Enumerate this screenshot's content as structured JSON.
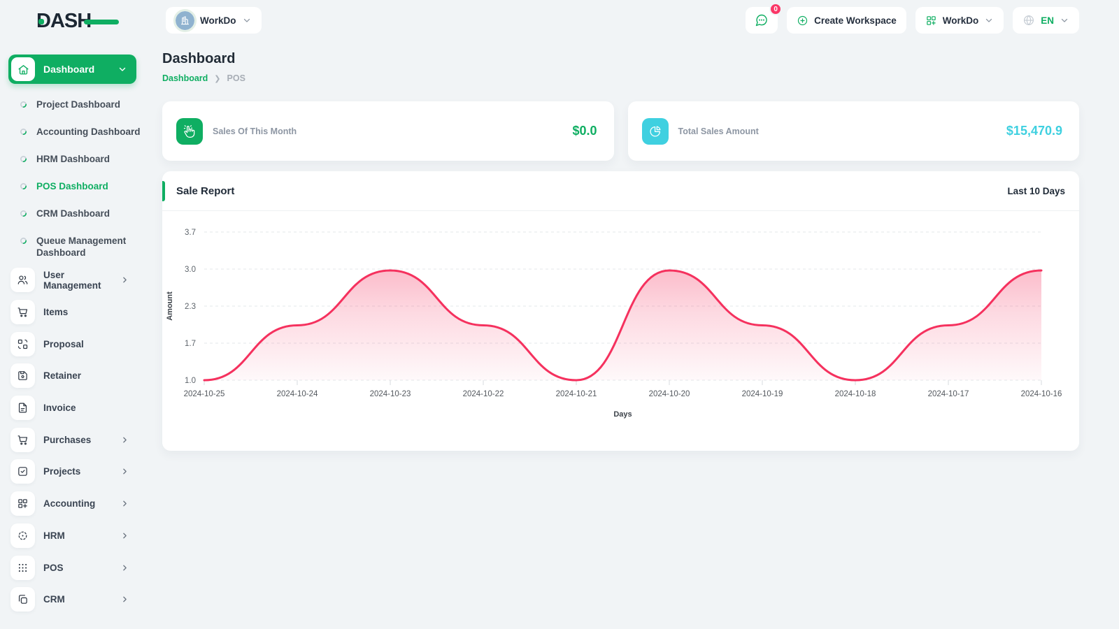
{
  "brand": {
    "name": "DASH"
  },
  "topbar": {
    "workspace_selector": {
      "name": "WorkDo",
      "icon": "building-icon"
    },
    "messages": {
      "icon": "chat-icon",
      "badge": "0"
    },
    "create_workspace": {
      "label": "Create Workspace",
      "icon": "plus-circle-icon"
    },
    "app_switcher": {
      "label": "WorkDo",
      "icon": "grid-plus-icon"
    },
    "language": {
      "label": "EN",
      "icon": "globe-icon"
    }
  },
  "sidebar": {
    "active_item": {
      "label": "Dashboard",
      "icon": "home-icon"
    },
    "dashboards": [
      {
        "label": "Project Dashboard",
        "active": false
      },
      {
        "label": "Accounting Dashboard",
        "active": false
      },
      {
        "label": "HRM Dashboard",
        "active": false
      },
      {
        "label": "POS Dashboard",
        "active": true
      },
      {
        "label": "CRM Dashboard",
        "active": false
      },
      {
        "label": "Queue Management Dashboard",
        "active": false
      }
    ],
    "menu": [
      {
        "label": "User Management",
        "icon": "users-icon",
        "expandable": true
      },
      {
        "label": "Items",
        "icon": "cart-icon",
        "expandable": false
      },
      {
        "label": "Proposal",
        "icon": "transform-icon",
        "expandable": false
      },
      {
        "label": "Retainer",
        "icon": "floppy-icon",
        "expandable": false
      },
      {
        "label": "Invoice",
        "icon": "file-icon",
        "expandable": false
      },
      {
        "label": "Purchases",
        "icon": "cart-icon",
        "expandable": true
      },
      {
        "label": "Projects",
        "icon": "check-square-icon",
        "expandable": true
      },
      {
        "label": "Accounting",
        "icon": "grid-plus-icon",
        "expandable": true
      },
      {
        "label": "HRM",
        "icon": "target-dots-icon",
        "expandable": true
      },
      {
        "label": "POS",
        "icon": "dots-grid-icon",
        "expandable": true
      },
      {
        "label": "CRM",
        "icon": "copy-icon",
        "expandable": true
      }
    ]
  },
  "page": {
    "title": "Dashboard",
    "breadcrumb": {
      "root": "Dashboard",
      "current": "POS"
    }
  },
  "stats": [
    {
      "label": "Sales Of This Month",
      "value": "$0.0",
      "icon": "hand-click-icon",
      "color": "#0fae62"
    },
    {
      "label": "Total Sales Amount",
      "value": "$15,470.9",
      "icon": "pie-chart-icon",
      "color": "#3fd0e0"
    }
  ],
  "chart_card": {
    "title": "Sale Report",
    "range_label": "Last 10 Days"
  },
  "chart_data": {
    "type": "area",
    "title": "Sale Report",
    "x": [
      "2024-10-25",
      "2024-10-24",
      "2024-10-23",
      "2024-10-22",
      "2024-10-21",
      "2024-10-20",
      "2024-10-19",
      "2024-10-18",
      "2024-10-17",
      "2024-10-16"
    ],
    "series": [
      {
        "name": "Amount",
        "values": [
          1,
          2,
          3,
          2,
          1,
          3,
          2,
          1,
          2,
          3
        ]
      }
    ],
    "xlabel": "Days",
    "ylabel": "Amount",
    "ylim": [
      1.0,
      3.7
    ],
    "ytick_labels": [
      "1.0",
      "1.7",
      "2.3",
      "3.0",
      "3.7"
    ],
    "grid": "dashed horizontal",
    "legend": "none",
    "line_color": "#f5315e",
    "fill": "pink gradient fading down"
  },
  "colors": {
    "primary_green": "#0fae62",
    "cyan": "#3fd0e0",
    "chart_pink": "#f5315e",
    "badge_red": "#fb3767",
    "page_bg": "#f1f4f6",
    "dark_text": "#1f2a37"
  }
}
